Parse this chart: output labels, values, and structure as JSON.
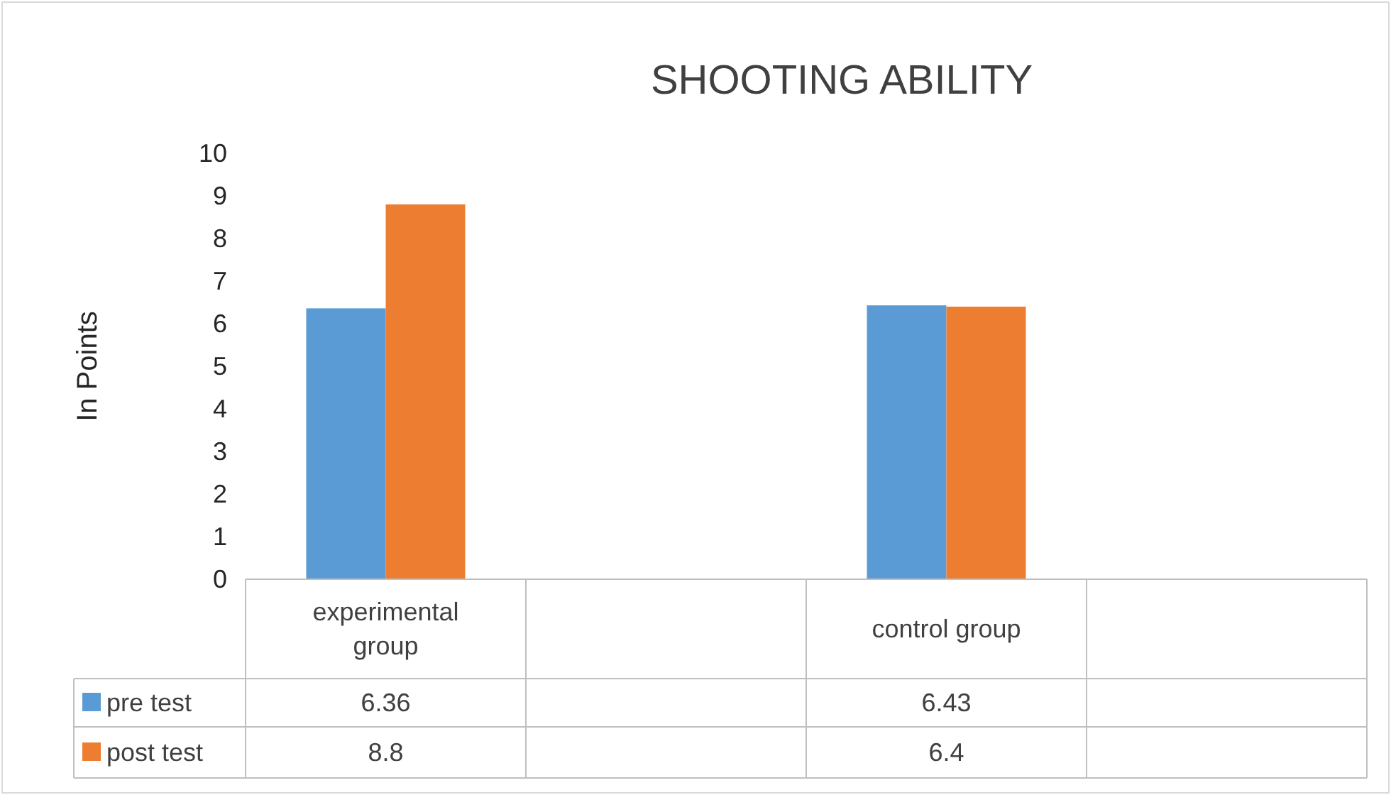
{
  "chart_data": {
    "type": "bar",
    "title": "SHOOTING ABILITY",
    "ylabel": "In Points",
    "categories": [
      "experimental group",
      null,
      "control group",
      null
    ],
    "series": [
      {
        "name": "pre test",
        "color": "#5b9bd5",
        "values": [
          6.36,
          null,
          6.43,
          null
        ]
      },
      {
        "name": "post test",
        "color": "#ed7d31",
        "values": [
          8.8,
          null,
          6.4,
          null
        ]
      }
    ],
    "ylim": [
      0,
      10
    ],
    "yticks": [
      0,
      1,
      2,
      3,
      4,
      5,
      6,
      7,
      8,
      9,
      10
    ],
    "grid": false,
    "legend": "bottom",
    "data_labels": true
  }
}
